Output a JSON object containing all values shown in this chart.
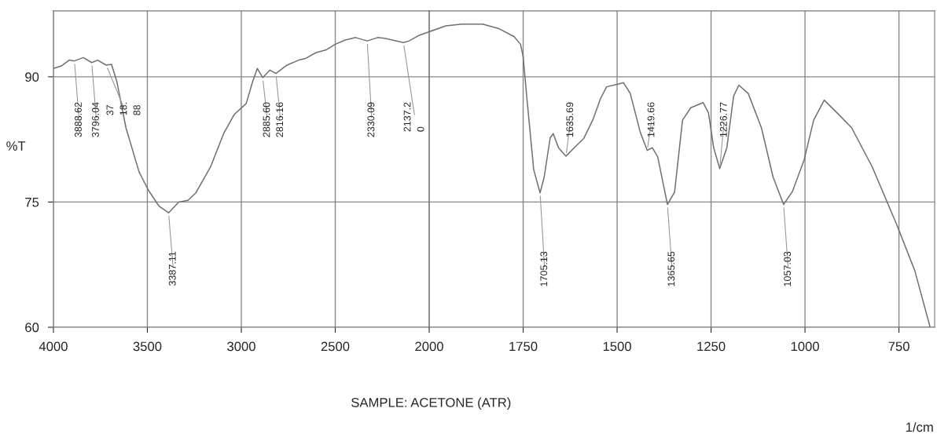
{
  "chart_data": [
    {
      "type": "line",
      "ylabel": "%T",
      "x": [
        4000,
        3958,
        3916,
        3888,
        3841,
        3796,
        3765,
        3719,
        3691,
        3663,
        3614,
        3544,
        3494,
        3438,
        3387,
        3333,
        3284,
        3242,
        3164,
        3094,
        3037,
        2974,
        2940,
        2915,
        2886,
        2848,
        2816,
        2757,
        2694,
        2658,
        2602,
        2551,
        2500,
        2447,
        2392,
        2330,
        2274,
        2233,
        2137,
        2107,
        2051,
        2000
      ],
      "series": [
        {
          "color": "#707070",
          "values": [
            91.0,
            91.3,
            92.0,
            91.9,
            92.3,
            91.7,
            92.0,
            91.4,
            91.5,
            89.5,
            83.9,
            78.6,
            76.4,
            74.5,
            73.7,
            75.0,
            75.2,
            76.1,
            79.2,
            83.2,
            85.5,
            86.8,
            89.4,
            91.0,
            89.9,
            90.8,
            90.4,
            91.4,
            92.0,
            92.2,
            92.9,
            93.2,
            93.9,
            94.4,
            94.7,
            94.3,
            94.7,
            94.6,
            94.1,
            94.3,
            95.0,
            95.4
          ]
        }
      ],
      "xlim": [
        4000,
        2000
      ],
      "ylim": [
        60,
        97.9
      ],
      "xticks": [
        4000,
        3500,
        3000,
        2500
      ],
      "yticks": [
        60,
        75,
        90
      ],
      "grid": true,
      "annotations": [
        {
          "text": "3888.62",
          "x": 3888,
          "y": 91.9
        },
        {
          "text": "3796.04",
          "x": 3796,
          "y": 91.7
        },
        {
          "text": "37\n18.\n88",
          "x": 3719,
          "y": 91.4
        },
        {
          "text": "3387.11",
          "x": 3387,
          "y": 73.7
        },
        {
          "text": "2885.60",
          "x": 2886,
          "y": 89.9
        },
        {
          "text": "2816.16",
          "x": 2816,
          "y": 90.4
        },
        {
          "text": "2330.09",
          "x": 2330,
          "y": 94.3
        },
        {
          "text": "2137.2\n0",
          "x": 2137,
          "y": 94.1
        }
      ]
    },
    {
      "type": "line",
      "xlabel": "1/cm",
      "tick_labels": "x",
      "x": [
        2000,
        1956,
        1914,
        1858,
        1816,
        1774,
        1757,
        1750,
        1740,
        1722,
        1705,
        1694,
        1678,
        1670,
        1656,
        1636,
        1614,
        1589,
        1565,
        1544,
        1528,
        1500,
        1483,
        1465,
        1438,
        1420,
        1406,
        1392,
        1366,
        1347,
        1326,
        1304,
        1271,
        1257,
        1243,
        1227,
        1208,
        1190,
        1176,
        1151,
        1116,
        1085,
        1057,
        1033,
        1002,
        977,
        949,
        915,
        876,
        821,
        757,
        708,
        667
      ],
      "series": [
        {
          "color": "#707070",
          "values": [
            95.4,
            96.1,
            96.3,
            96.3,
            95.8,
            94.8,
            93.9,
            92.4,
            87.4,
            78.9,
            76.1,
            78.0,
            82.7,
            83.2,
            81.5,
            80.5,
            81.5,
            82.6,
            84.8,
            87.4,
            88.8,
            89.1,
            89.3,
            88.0,
            83.3,
            81.2,
            81.5,
            80.4,
            74.7,
            76.2,
            84.8,
            86.3,
            86.9,
            85.7,
            81.5,
            79.0,
            81.5,
            87.7,
            89.0,
            88.0,
            83.9,
            78.0,
            74.7,
            76.3,
            80.1,
            84.8,
            87.2,
            85.7,
            83.9,
            79.2,
            72.4,
            66.8,
            60.0
          ]
        }
      ],
      "xlim": [
        2000,
        655
      ],
      "ylim": [
        60,
        97.9
      ],
      "xticks": [
        2000,
        1750,
        1500,
        1250,
        1000,
        750
      ],
      "yticks": [
        60,
        75,
        90
      ],
      "grid": true,
      "annotations": [
        {
          "text": "1705.13",
          "x": 1705,
          "y": 76.1
        },
        {
          "text": "1635.69",
          "x": 1636,
          "y": 80.5
        },
        {
          "text": "1419.66",
          "x": 1420,
          "y": 81.2
        },
        {
          "text": "1365.65",
          "x": 1366,
          "y": 74.7
        },
        {
          "text": "1226.77",
          "x": 1227,
          "y": 79.0
        },
        {
          "text": "1057.03",
          "x": 1057,
          "y": 74.7
        },
        "SAMPLE: ACETONE (ATR)"
      ]
    }
  ]
}
